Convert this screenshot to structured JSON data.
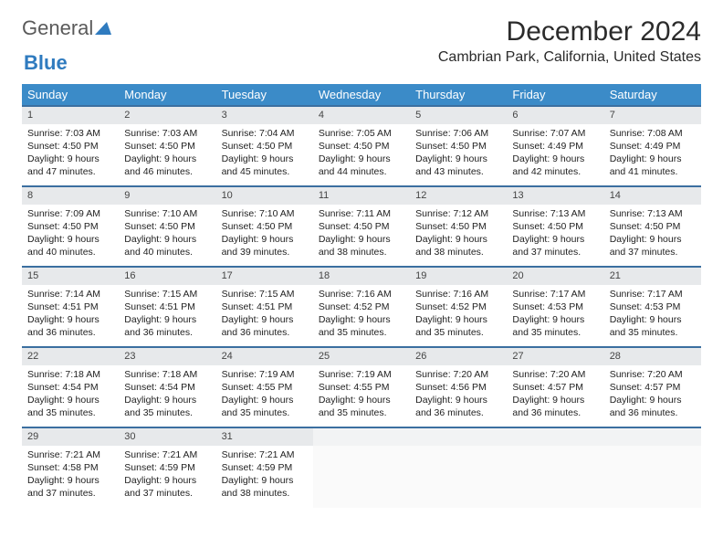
{
  "logo": {
    "part1": "General",
    "part2": "Blue"
  },
  "title": "December 2024",
  "location": "Cambrian Park, California, United States",
  "colors": {
    "header_bg": "#3b8bc8",
    "header_text": "#ffffff",
    "row_border": "#3b6fa0",
    "daynum_bg": "#e7e9eb",
    "logo_gray": "#5a5a5a",
    "logo_blue": "#2f7bbf"
  },
  "day_headers": [
    "Sunday",
    "Monday",
    "Tuesday",
    "Wednesday",
    "Thursday",
    "Friday",
    "Saturday"
  ],
  "weeks": [
    [
      {
        "n": "1",
        "sunrise": "7:03 AM",
        "sunset": "4:50 PM",
        "daylight": "9 hours and 47 minutes."
      },
      {
        "n": "2",
        "sunrise": "7:03 AM",
        "sunset": "4:50 PM",
        "daylight": "9 hours and 46 minutes."
      },
      {
        "n": "3",
        "sunrise": "7:04 AM",
        "sunset": "4:50 PM",
        "daylight": "9 hours and 45 minutes."
      },
      {
        "n": "4",
        "sunrise": "7:05 AM",
        "sunset": "4:50 PM",
        "daylight": "9 hours and 44 minutes."
      },
      {
        "n": "5",
        "sunrise": "7:06 AM",
        "sunset": "4:50 PM",
        "daylight": "9 hours and 43 minutes."
      },
      {
        "n": "6",
        "sunrise": "7:07 AM",
        "sunset": "4:49 PM",
        "daylight": "9 hours and 42 minutes."
      },
      {
        "n": "7",
        "sunrise": "7:08 AM",
        "sunset": "4:49 PM",
        "daylight": "9 hours and 41 minutes."
      }
    ],
    [
      {
        "n": "8",
        "sunrise": "7:09 AM",
        "sunset": "4:50 PM",
        "daylight": "9 hours and 40 minutes."
      },
      {
        "n": "9",
        "sunrise": "7:10 AM",
        "sunset": "4:50 PM",
        "daylight": "9 hours and 40 minutes."
      },
      {
        "n": "10",
        "sunrise": "7:10 AM",
        "sunset": "4:50 PM",
        "daylight": "9 hours and 39 minutes."
      },
      {
        "n": "11",
        "sunrise": "7:11 AM",
        "sunset": "4:50 PM",
        "daylight": "9 hours and 38 minutes."
      },
      {
        "n": "12",
        "sunrise": "7:12 AM",
        "sunset": "4:50 PM",
        "daylight": "9 hours and 38 minutes."
      },
      {
        "n": "13",
        "sunrise": "7:13 AM",
        "sunset": "4:50 PM",
        "daylight": "9 hours and 37 minutes."
      },
      {
        "n": "14",
        "sunrise": "7:13 AM",
        "sunset": "4:50 PM",
        "daylight": "9 hours and 37 minutes."
      }
    ],
    [
      {
        "n": "15",
        "sunrise": "7:14 AM",
        "sunset": "4:51 PM",
        "daylight": "9 hours and 36 minutes."
      },
      {
        "n": "16",
        "sunrise": "7:15 AM",
        "sunset": "4:51 PM",
        "daylight": "9 hours and 36 minutes."
      },
      {
        "n": "17",
        "sunrise": "7:15 AM",
        "sunset": "4:51 PM",
        "daylight": "9 hours and 36 minutes."
      },
      {
        "n": "18",
        "sunrise": "7:16 AM",
        "sunset": "4:52 PM",
        "daylight": "9 hours and 35 minutes."
      },
      {
        "n": "19",
        "sunrise": "7:16 AM",
        "sunset": "4:52 PM",
        "daylight": "9 hours and 35 minutes."
      },
      {
        "n": "20",
        "sunrise": "7:17 AM",
        "sunset": "4:53 PM",
        "daylight": "9 hours and 35 minutes."
      },
      {
        "n": "21",
        "sunrise": "7:17 AM",
        "sunset": "4:53 PM",
        "daylight": "9 hours and 35 minutes."
      }
    ],
    [
      {
        "n": "22",
        "sunrise": "7:18 AM",
        "sunset": "4:54 PM",
        "daylight": "9 hours and 35 minutes."
      },
      {
        "n": "23",
        "sunrise": "7:18 AM",
        "sunset": "4:54 PM",
        "daylight": "9 hours and 35 minutes."
      },
      {
        "n": "24",
        "sunrise": "7:19 AM",
        "sunset": "4:55 PM",
        "daylight": "9 hours and 35 minutes."
      },
      {
        "n": "25",
        "sunrise": "7:19 AM",
        "sunset": "4:55 PM",
        "daylight": "9 hours and 35 minutes."
      },
      {
        "n": "26",
        "sunrise": "7:20 AM",
        "sunset": "4:56 PM",
        "daylight": "9 hours and 36 minutes."
      },
      {
        "n": "27",
        "sunrise": "7:20 AM",
        "sunset": "4:57 PM",
        "daylight": "9 hours and 36 minutes."
      },
      {
        "n": "28",
        "sunrise": "7:20 AM",
        "sunset": "4:57 PM",
        "daylight": "9 hours and 36 minutes."
      }
    ],
    [
      {
        "n": "29",
        "sunrise": "7:21 AM",
        "sunset": "4:58 PM",
        "daylight": "9 hours and 37 minutes."
      },
      {
        "n": "30",
        "sunrise": "7:21 AM",
        "sunset": "4:59 PM",
        "daylight": "9 hours and 37 minutes."
      },
      {
        "n": "31",
        "sunrise": "7:21 AM",
        "sunset": "4:59 PM",
        "daylight": "9 hours and 38 minutes."
      },
      {
        "n": "",
        "empty": true
      },
      {
        "n": "",
        "empty": true
      },
      {
        "n": "",
        "empty": true
      },
      {
        "n": "",
        "empty": true
      }
    ]
  ],
  "labels": {
    "sunrise": "Sunrise:",
    "sunset": "Sunset:",
    "daylight": "Daylight:"
  }
}
